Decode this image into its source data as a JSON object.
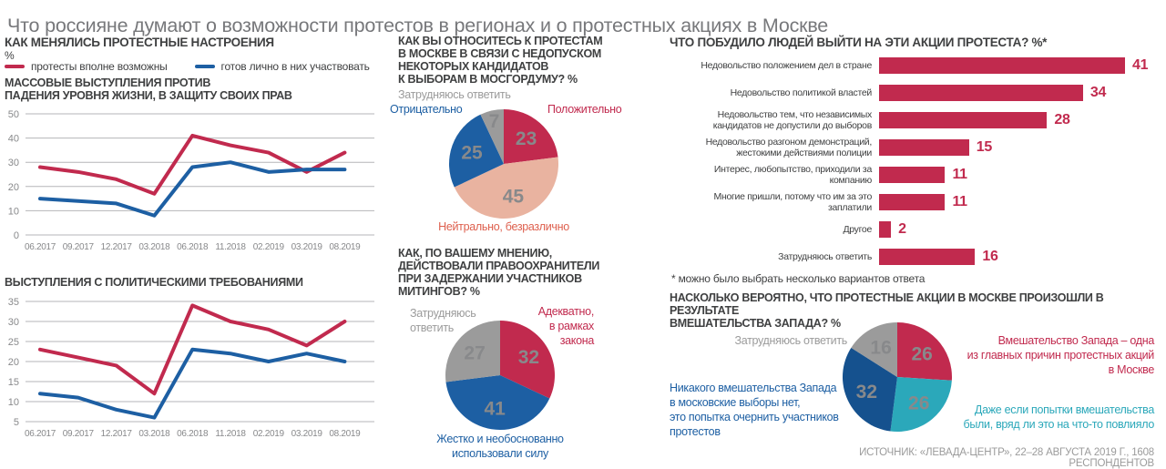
{
  "page": {
    "title": "Что россияне думают о возможности протестов в регионах и о протестных акциях в Москве",
    "source": "ИСТОЧНИК: «ЛЕВАДА-ЦЕНТР», 22–28 АВГУСТА 2019 Г., 1608 РЕСПОНДЕНТОВ"
  },
  "sentiment": {
    "title": "КАК МЕНЯЛИСЬ ПРОТЕСТНЫЕ НАСТРОЕНИЯ",
    "unit": "%",
    "legend": [
      {
        "label": "протесты вполне возможны",
        "color": "#c12a4e"
      },
      {
        "label": "готов лично в них участвовать",
        "color": "#1d5fa3"
      }
    ]
  },
  "chart_data": [
    {
      "id": "living_standards_protests",
      "type": "line",
      "title": "МАССОВЫЕ ВЫСТУПЛЕНИЯ ПРОТИВ\nПАДЕНИЯ УРОВНЯ ЖИЗНИ, В ЗАЩИТУ СВОИХ ПРАВ",
      "x": [
        "06.2017",
        "09.2017",
        "12.2017",
        "03.2018",
        "06.2018",
        "11.2018",
        "02.2019",
        "03.2019",
        "08.2019"
      ],
      "series": [
        {
          "name": "протесты вполне возможны",
          "color": "#c12a4e",
          "values": [
            28,
            26,
            23,
            17,
            41,
            37,
            34,
            26,
            34
          ]
        },
        {
          "name": "готов лично в них участвовать",
          "color": "#1d5fa3",
          "values": [
            15,
            14,
            13,
            8,
            28,
            30,
            26,
            27,
            27
          ]
        }
      ],
      "ylim": [
        0,
        50
      ],
      "yticks": [
        0,
        10,
        20,
        30,
        40,
        50
      ],
      "grid": true,
      "legend_position": "top"
    },
    {
      "id": "political_demands_protests",
      "type": "line",
      "title": "ВЫСТУПЛЕНИЯ С ПОЛИТИЧЕСКИМИ ТРЕБОВАНИЯМИ",
      "x": [
        "06.2017",
        "09.2017",
        "12.2017",
        "03.2018",
        "06.2018",
        "11.2018",
        "02.2019",
        "03.2019",
        "08.2019"
      ],
      "series": [
        {
          "name": "протесты вполне возможны",
          "color": "#c12a4e",
          "values": [
            23,
            21,
            19,
            12,
            34,
            30,
            28,
            24,
            30
          ]
        },
        {
          "name": "готов лично в них участвовать",
          "color": "#1d5fa3",
          "values": [
            12,
            11,
            8,
            6,
            23,
            22,
            20,
            22,
            20
          ]
        }
      ],
      "ylim": [
        5,
        35
      ],
      "yticks": [
        5,
        10,
        15,
        20,
        25,
        30,
        35
      ],
      "grid": true,
      "legend_position": "top"
    },
    {
      "id": "attitude_to_moscow_protests",
      "type": "pie",
      "title": "КАК ВЫ ОТНОСИТЕСЬ К ПРОТЕСТАМ\nВ МОСКВЕ В СВЯЗИ С НЕДОПУСКОМ\nНЕКОТОРЫХ КАНДИДАТОВ\nК ВЫБОРАМ В МОСГОРДУМУ? %",
      "slices": [
        {
          "label": "Положительно",
          "callout": "Положительно",
          "value": 23,
          "color": "#c12a4e",
          "label_color": "#c12a4e",
          "num_color": "#ffffff"
        },
        {
          "label": "Нейтрально, безразлично",
          "callout": "Нейтрально, безразлично",
          "value": 45,
          "color": "#e9b3a0",
          "label_color": "#de5f4d",
          "num_color": "#3f4041"
        },
        {
          "label": "Отрицательно",
          "callout": "Отрицательно",
          "value": 25,
          "color": "#1d5fa3",
          "label_color": "#1d5fa3",
          "num_color": "#ffffff"
        },
        {
          "label": "Затрудняюсь ответить",
          "callout": "Затрудняюсь ответить",
          "value": 7,
          "color": "#9b9b9b",
          "label_color": "#9b9b9b",
          "num_color": "#ffffff"
        }
      ]
    },
    {
      "id": "police_actions_opinion",
      "type": "pie",
      "title": "КАК, ПО ВАШЕМУ МНЕНИЮ,\nДЕЙСТВОВАЛИ ПРАВООХРАНИТЕЛИ\nПРИ ЗАДЕРЖАНИИ УЧАСТНИКОВ\nМИТИНГОВ? %",
      "slices": [
        {
          "label": "Адекватно, в рамках закона",
          "callout": "Адекватно,\nв рамках\nзакона",
          "value": 32,
          "color": "#c12a4e",
          "label_color": "#c12a4e",
          "num_color": "#ffffff"
        },
        {
          "label": "Жестко и необоснованно использовали силу",
          "callout": "Жестко и необоснованно\nиспользовали силу",
          "value": 41,
          "color": "#1d5fa3",
          "label_color": "#1d5fa3",
          "num_color": "#ffffff"
        },
        {
          "label": "Затрудняюсь ответить",
          "callout": "Затрудняюсь\nответить",
          "value": 27,
          "color": "#9b9b9b",
          "label_color": "#9b9b9b",
          "num_color": "#ffffff"
        }
      ]
    },
    {
      "id": "protest_motivation",
      "type": "bar",
      "title": "ЧТО ПОБУДИЛО ЛЮДЕЙ ВЫЙТИ НА ЭТИ АКЦИИ ПРОТЕСТА? %*",
      "color": "#c12a4e",
      "categories": [
        "Недовольство положением дел в стране",
        "Недовольство политикой властей",
        "Недовольство тем, что независимых\nкандидатов не допустили до выборов",
        "Недовольство разгоном демонстраций,\nжестокими действиями полиции",
        "Интерес, любопытство, приходили за компанию",
        "Многие пришли, потому что им за это заплатили",
        "Другое",
        "Затрудняюсь ответить"
      ],
      "values": [
        41,
        34,
        28,
        15,
        11,
        11,
        2,
        16
      ],
      "xmax": 41,
      "footnote": "* можно было выбрать несколько вариантов ответа"
    },
    {
      "id": "west_interference",
      "type": "pie",
      "title": "НАСКОЛЬКО ВЕРОЯТНО, ЧТО ПРОТЕСТНЫЕ АКЦИИ В МОСКВЕ ПРОИЗОШЛИ В РЕЗУЛЬТАТЕ\nВМЕШАТЕЛЬСТВА ЗАПАДА? %",
      "slices": [
        {
          "label": "Вмешательство Запада – одна из главных причин протестных акций в Москве",
          "callout": "Вмешательство Запада – одна\nиз главных причин протестных акций\nв Москве",
          "value": 26,
          "color": "#c12a4e",
          "label_color": "#c12a4e",
          "num_color": "#ffffff"
        },
        {
          "label": "Даже если попытки вмешательства были, вряд ли это на что-то повлияло",
          "callout": "Даже если попытки вмешательства\nбыли, вряд ли это на что-то повлияло",
          "value": 26,
          "color": "#2ba8ba",
          "label_color": "#2ba8ba",
          "num_color": "#ffffff"
        },
        {
          "label": "Никакого вмешательства Запада в московские выборы нет, это попытка очернить участников протестов",
          "callout": "Никакого вмешательства Запада\nв московские выборы нет,\nэто попытка очернить участников\nпротестов",
          "value": 32,
          "color": "#15518e",
          "label_color": "#1d5fa3",
          "num_color": "#ffffff"
        },
        {
          "label": "Затрудняюсь ответить",
          "callout": "Затрудняюсь ответить",
          "value": 16,
          "color": "#9b9b9b",
          "label_color": "#9b9b9b",
          "num_color": "#ffffff"
        }
      ]
    }
  ]
}
